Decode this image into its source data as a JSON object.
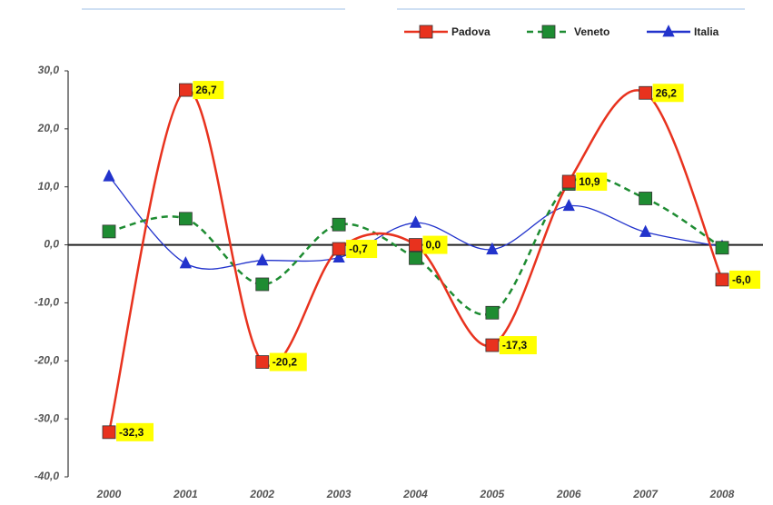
{
  "chart_data": {
    "type": "line",
    "categories": [
      "2000",
      "2001",
      "2002",
      "2003",
      "2004",
      "2005",
      "2006",
      "2007",
      "2008"
    ],
    "series": [
      {
        "name": "Padova",
        "color": "#e8321e",
        "marker": "square",
        "dashed": false,
        "values": [
          -32.3,
          26.7,
          -20.2,
          -0.7,
          0.0,
          -17.3,
          10.9,
          26.2,
          -6.0
        ],
        "value_labels": [
          "-32,3",
          "26,7",
          "-20,2",
          "-0,7",
          "0,0",
          "-17,3",
          "10,9",
          "26,2",
          "-6,0"
        ]
      },
      {
        "name": "Veneto",
        "color": "#1e8c32",
        "marker": "square",
        "dashed": true,
        "values": [
          2.3,
          4.5,
          -6.8,
          3.5,
          -2.3,
          -11.7,
          10.5,
          8.0,
          -0.5
        ]
      },
      {
        "name": "Italia",
        "color": "#2233cc",
        "marker": "triangle",
        "dashed": false,
        "values": [
          11.8,
          -3.2,
          -2.7,
          -2.2,
          3.8,
          -0.8,
          6.7,
          2.2,
          -0.3
        ]
      }
    ],
    "ylim": [
      -40,
      30
    ],
    "yticks": [
      {
        "value": -40,
        "label": "-40,0"
      },
      {
        "value": -30,
        "label": "-30,0"
      },
      {
        "value": -20,
        "label": "-20,0"
      },
      {
        "value": -10,
        "label": "-10,0"
      },
      {
        "value": 0,
        "label": "0,0"
      },
      {
        "value": 10,
        "label": "10,0"
      },
      {
        "value": 20,
        "label": "20,0"
      },
      {
        "value": 30,
        "label": "30,0"
      }
    ],
    "grid": false,
    "smooth": true,
    "legend": "top-right"
  }
}
